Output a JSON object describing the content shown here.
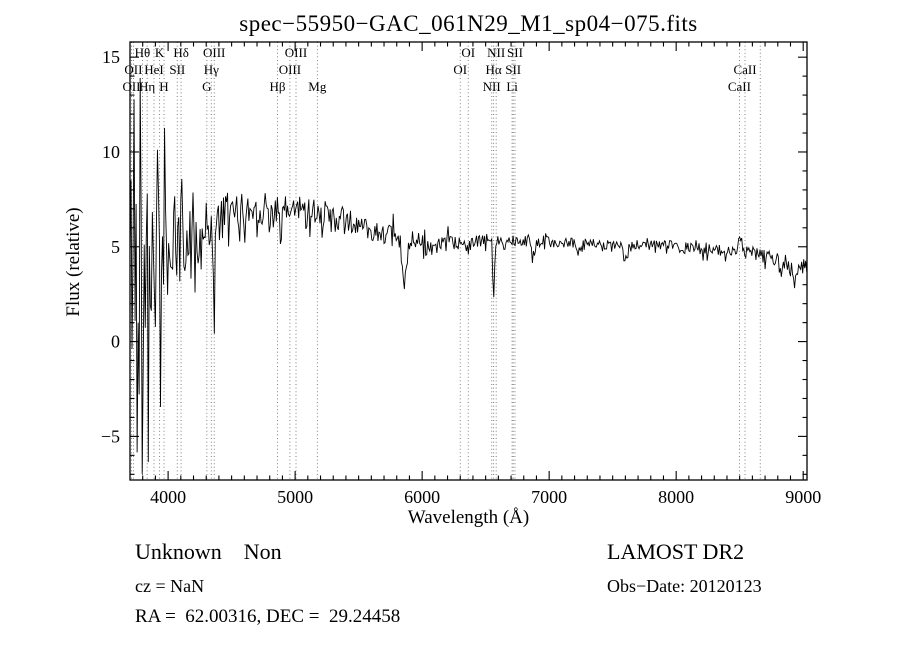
{
  "figure": {
    "background": "#ffffff",
    "ink": "#000000"
  },
  "chart_data": {
    "type": "line",
    "title": "spec−55950−GAC_061N29_M1_sp04−075.fits",
    "xlabel": "Wavelength (Å)",
    "ylabel": "Flux (relative)",
    "xlim": [
      3700,
      9030
    ],
    "ylim": [
      -7.3,
      15.8
    ],
    "xticks": [
      4000,
      5000,
      6000,
      7000,
      8000,
      9000
    ],
    "yticks": [
      -5,
      0,
      5,
      10,
      15
    ],
    "x_minor_step": 100,
    "y_minor_step": 1,
    "grid": false,
    "line_label_rows_y": [
      57,
      74,
      91
    ],
    "spectral_lines": [
      {
        "wl": 3798,
        "label": "Hθ",
        "row": 0
      },
      {
        "wl": 3933,
        "label": "K",
        "row": 0
      },
      {
        "wl": 4102,
        "label": "Hδ",
        "row": 0
      },
      {
        "wl": 4363,
        "label": "OIII",
        "row": 0
      },
      {
        "wl": 5007,
        "label": "OIII",
        "row": 0
      },
      {
        "wl": 6363,
        "label": "OI",
        "row": 0
      },
      {
        "wl": 6583,
        "label": "NII",
        "row": 0
      },
      {
        "wl": 6731,
        "label": "SII",
        "row": 0
      },
      {
        "wl": 8662,
        "label": "",
        "row": 0
      },
      {
        "wl": 3727,
        "label": "OII",
        "row": 1
      },
      {
        "wl": 3889,
        "label": "HeI",
        "row": 1
      },
      {
        "wl": 4072,
        "label": "SII",
        "row": 1
      },
      {
        "wl": 4340,
        "label": "Hγ",
        "row": 1
      },
      {
        "wl": 4959,
        "label": "OIII",
        "row": 1
      },
      {
        "wl": 6300,
        "label": "OI",
        "row": 1
      },
      {
        "wl": 6563,
        "label": "Hα",
        "row": 1
      },
      {
        "wl": 6717,
        "label": "SII",
        "row": 1
      },
      {
        "wl": 8542,
        "label": "CaII",
        "row": 1
      },
      {
        "wl": 3712,
        "label": "OII",
        "row": 2
      },
      {
        "wl": 3835,
        "label": "Hη",
        "row": 2
      },
      {
        "wl": 3968,
        "label": "H",
        "row": 2
      },
      {
        "wl": 4305,
        "label": "G",
        "row": 2
      },
      {
        "wl": 4861,
        "label": "Hβ",
        "row": 2
      },
      {
        "wl": 5175,
        "label": "Mg",
        "row": 2
      },
      {
        "wl": 6548,
        "label": "NII",
        "row": 2
      },
      {
        "wl": 6708,
        "label": "Li",
        "row": 2
      },
      {
        "wl": 8498,
        "label": "CaII",
        "row": 2
      }
    ],
    "spectrum": {
      "sample_step": 8,
      "seed": 42,
      "clip": [
        -7.0,
        13.9
      ],
      "continuum": [
        [
          3700,
          3.0
        ],
        [
          3740,
          4.2
        ],
        [
          3800,
          4.3
        ],
        [
          3900,
          4.6
        ],
        [
          4000,
          4.8
        ],
        [
          4100,
          5.2
        ],
        [
          4200,
          5.4
        ],
        [
          4300,
          5.9
        ],
        [
          4400,
          6.3
        ],
        [
          4500,
          6.6
        ],
        [
          4600,
          6.9
        ],
        [
          4700,
          7.1
        ],
        [
          4800,
          6.9
        ],
        [
          4900,
          6.8
        ],
        [
          5000,
          7.0
        ],
        [
          5100,
          7.0
        ],
        [
          5200,
          6.8
        ],
        [
          5300,
          6.5
        ],
        [
          5400,
          6.3
        ],
        [
          5500,
          6.1
        ],
        [
          5600,
          5.9
        ],
        [
          5700,
          5.7
        ],
        [
          5800,
          5.5
        ],
        [
          5900,
          5.1
        ],
        [
          6000,
          5.0
        ],
        [
          6100,
          5.0
        ],
        [
          6200,
          5.1
        ],
        [
          6300,
          5.15
        ],
        [
          6400,
          5.2
        ],
        [
          6500,
          5.3
        ],
        [
          6600,
          5.3
        ],
        [
          6700,
          5.35
        ],
        [
          6800,
          5.4
        ],
        [
          7000,
          5.25
        ],
        [
          7200,
          5.2
        ],
        [
          7400,
          5.1
        ],
        [
          7600,
          5.0
        ],
        [
          7800,
          5.15
        ],
        [
          8000,
          5.0
        ],
        [
          8200,
          4.9
        ],
        [
          8400,
          4.75
        ],
        [
          8550,
          4.8
        ],
        [
          8700,
          4.5
        ],
        [
          8850,
          4.2
        ],
        [
          9000,
          3.9
        ],
        [
          9030,
          4.0
        ]
      ],
      "noise_amp": [
        [
          3700,
          7.5
        ],
        [
          3760,
          7.0
        ],
        [
          3800,
          5.8
        ],
        [
          3850,
          5.2
        ],
        [
          3900,
          4.5
        ],
        [
          3950,
          3.8
        ],
        [
          4000,
          3.0
        ],
        [
          4100,
          2.4
        ],
        [
          4200,
          2.0
        ],
        [
          4300,
          1.8
        ],
        [
          4400,
          1.4
        ],
        [
          4500,
          1.1
        ],
        [
          4700,
          0.95
        ],
        [
          5000,
          0.8
        ],
        [
          5300,
          0.7
        ],
        [
          5600,
          0.55
        ],
        [
          5900,
          0.5
        ],
        [
          6200,
          0.45
        ],
        [
          6500,
          0.35
        ],
        [
          7000,
          0.3
        ],
        [
          7500,
          0.28
        ],
        [
          8000,
          0.3
        ],
        [
          8500,
          0.32
        ],
        [
          8800,
          0.4
        ],
        [
          9030,
          0.5
        ]
      ],
      "features": [
        {
          "wl": 3727,
          "amp": 5.0,
          "sigma": 6
        },
        {
          "wl": 3760,
          "amp": -8.0,
          "sigma": 5
        },
        {
          "wl": 3798,
          "amp": -6.0,
          "sigma": 4
        },
        {
          "wl": 3835,
          "amp": 5.5,
          "sigma": 4
        },
        {
          "wl": 3933,
          "amp": -5.0,
          "sigma": 4
        },
        {
          "wl": 3970,
          "amp": 4.0,
          "sigma": 4
        },
        {
          "wl": 4363,
          "amp": -4.5,
          "sigma": 5
        },
        {
          "wl": 4885,
          "amp": -1.8,
          "sigma": 7
        },
        {
          "wl": 5860,
          "amp": -2.4,
          "sigma": 16
        },
        {
          "wl": 6563,
          "amp": -2.9,
          "sigma": 7
        },
        {
          "wl": 6870,
          "amp": -0.9,
          "sigma": 14
        },
        {
          "wl": 7230,
          "amp": -0.4,
          "sigma": 14
        },
        {
          "wl": 7600,
          "amp": -0.7,
          "sigma": 16
        },
        {
          "wl": 8500,
          "amp": 0.9,
          "sigma": 10
        },
        {
          "wl": 8930,
          "amp": -0.7,
          "sigma": 12
        }
      ]
    }
  },
  "annotations": {
    "class_label": "Unknown    Non",
    "survey": "LAMOST DR2",
    "cz": "cz = NaN",
    "obs_date": "Obs−Date: 20120123",
    "coords": "RA =  62.00316, DEC =  29.24458"
  }
}
